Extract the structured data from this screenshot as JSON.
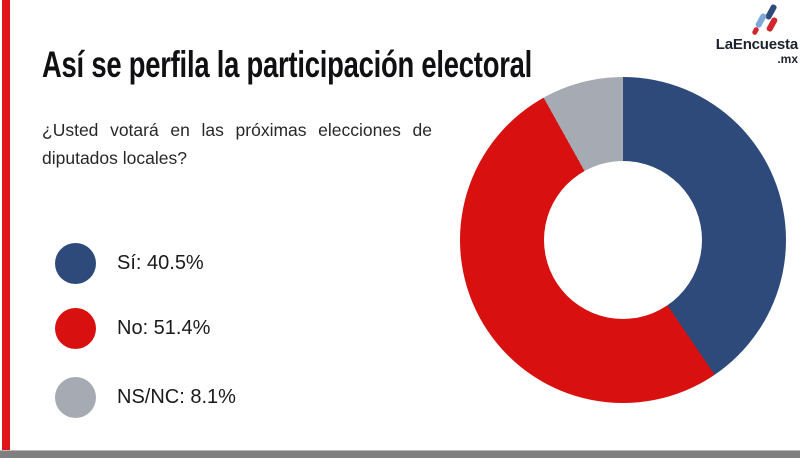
{
  "title": "Así se perfila la participación electoral",
  "question": "¿Usted votará en las próximas elecciones de diputados locales?",
  "logo": {
    "name": "LaEncuesta",
    "tld": ".mx",
    "icon": "four-slashes-icon",
    "icon_colors": [
      "#2d4a7b",
      "#7fa8d9",
      "#d0262c",
      "#d0262c"
    ],
    "text_color": "#1c222e"
  },
  "accent_bar_color": "#e1141b",
  "footer_bar_color": "#808080",
  "legend": {
    "items": [
      {
        "label": "Sí: 40.5%"
      },
      {
        "label": "No: 51.4%"
      },
      {
        "label": "NS/NC: 8.1%"
      }
    ]
  },
  "chart_data": {
    "type": "pie",
    "subtype": "donut",
    "title": "Así se perfila la participación electoral",
    "question": "¿Usted votará en las próximas elecciones de diputados locales?",
    "categories": [
      "Sí",
      "No",
      "NS/NC"
    ],
    "values": [
      40.5,
      51.4,
      8.1
    ],
    "unit": "%",
    "colors": [
      "#2d4a7b",
      "#d8100f",
      "#a6abb3"
    ],
    "start_angle_deg": 0,
    "direction": "clockwise",
    "inner_radius_ratio": 0.48,
    "legend_position": "left"
  }
}
